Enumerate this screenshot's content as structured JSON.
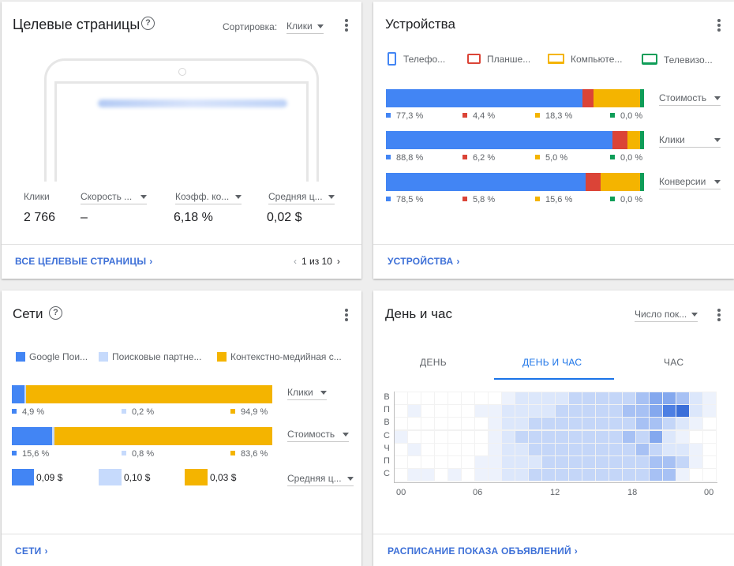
{
  "landing": {
    "title": "Целевые страницы",
    "sort_label": "Сортировка:",
    "sort_value": "Клики",
    "url_blurred": "https://example.com/landing-page",
    "stats": [
      {
        "label": "Клики",
        "value": "2 766",
        "dropdown": false
      },
      {
        "label": "Скорость ...",
        "value": "–",
        "dropdown": true
      },
      {
        "label": "Коэфф. ко...",
        "value": "6,18 %",
        "dropdown": true
      },
      {
        "label": "Средняя ц...",
        "value": "0,02 $",
        "dropdown": true
      }
    ],
    "footer_link": "ВСЕ ЦЕЛЕВЫЕ СТРАНИЦЫ",
    "pager": "1 из 10"
  },
  "devices": {
    "title": "Устройства",
    "legend": [
      {
        "label": "Телефо...",
        "icon": "phone-icon",
        "color": "#4285f4"
      },
      {
        "label": "Планше...",
        "icon": "tablet-icon",
        "color": "#db4437"
      },
      {
        "label": "Компьюте...",
        "icon": "laptop-icon",
        "color": "#f4b400"
      },
      {
        "label": "Телевизо...",
        "icon": "tv-icon",
        "color": "#0f9d58"
      }
    ],
    "rows": [
      {
        "metric": "Стоимость",
        "values": [
          77.3,
          4.4,
          18.3,
          0.0
        ],
        "labels": [
          "77,3 %",
          "4,4 %",
          "18,3 %",
          "0,0 %"
        ]
      },
      {
        "metric": "Клики",
        "values": [
          88.8,
          6.2,
          5.0,
          0.0
        ],
        "labels": [
          "88,8 %",
          "6,2 %",
          "5,0 %",
          "0,0 %"
        ]
      },
      {
        "metric": "Конверсии",
        "values": [
          78.5,
          5.8,
          15.6,
          0.0
        ],
        "labels": [
          "78,5 %",
          "5,8 %",
          "15,6 %",
          "0,0 %"
        ]
      }
    ],
    "footer_link": "УСТРОЙСТВА"
  },
  "networks": {
    "title": "Сети",
    "legend": [
      {
        "label": "Google Пои...",
        "color": "#4285f4"
      },
      {
        "label": "Поисковые партне...",
        "color": "#c6dafc"
      },
      {
        "label": "Контекстно-медийная с...",
        "color": "#f4b400"
      }
    ],
    "rows": [
      {
        "metric": "Клики",
        "values": [
          4.9,
          0.2,
          94.9
        ],
        "labels": [
          "4,9 %",
          "0,2 %",
          "94,9 %"
        ]
      },
      {
        "metric": "Стоимость",
        "values": [
          15.6,
          0.8,
          83.6
        ],
        "labels": [
          "15,6 %",
          "0,8 %",
          "83,6 %"
        ]
      }
    ],
    "cost": {
      "metric": "Средняя ц...",
      "labels": [
        "0,09 $",
        "0,10 $",
        "0,03 $"
      ]
    },
    "footer_link": "СЕТИ"
  },
  "dayhour": {
    "title": "День и час",
    "metric_dropdown": "Число пок...",
    "tabs": [
      "ДЕНЬ",
      "ДЕНЬ И ЧАС",
      "ЧАС"
    ],
    "active_tab": 1,
    "row_labels": [
      "В",
      "П",
      "В",
      "С",
      "Ч",
      "П",
      "С"
    ],
    "x_ticks": [
      "00",
      "06",
      "12",
      "18",
      "00"
    ],
    "intensity": [
      [
        0,
        0,
        0,
        0,
        0,
        0,
        0,
        0,
        1,
        2,
        2,
        2,
        2,
        3,
        3,
        3,
        3,
        3,
        4,
        5,
        5,
        4,
        2,
        1
      ],
      [
        0,
        1,
        0,
        0,
        0,
        0,
        1,
        1,
        2,
        2,
        2,
        2,
        3,
        3,
        3,
        3,
        3,
        4,
        4,
        5,
        6,
        7,
        2,
        1
      ],
      [
        0,
        0,
        0,
        0,
        0,
        0,
        0,
        1,
        2,
        2,
        3,
        3,
        3,
        3,
        3,
        3,
        3,
        3,
        4,
        4,
        3,
        2,
        1,
        0
      ],
      [
        1,
        0,
        0,
        0,
        0,
        0,
        0,
        1,
        2,
        3,
        3,
        3,
        3,
        3,
        3,
        3,
        3,
        4,
        3,
        5,
        2,
        1,
        0,
        0
      ],
      [
        0,
        1,
        0,
        0,
        0,
        0,
        0,
        1,
        2,
        2,
        3,
        3,
        3,
        3,
        3,
        3,
        3,
        3,
        4,
        3,
        2,
        2,
        1,
        0
      ],
      [
        0,
        0,
        0,
        0,
        0,
        0,
        1,
        1,
        2,
        2,
        2,
        3,
        3,
        3,
        3,
        3,
        3,
        3,
        3,
        4,
        4,
        3,
        1,
        0
      ],
      [
        0,
        1,
        1,
        0,
        1,
        0,
        1,
        1,
        2,
        2,
        3,
        3,
        3,
        3,
        3,
        3,
        3,
        3,
        3,
        4,
        4,
        1,
        0,
        0
      ]
    ],
    "footer_link": "РАСПИСАНИЕ ПОКАЗА ОБЪЯВЛЕНИЙ"
  },
  "colors": {
    "accent": "#3c6fd7",
    "blue": "#4285f4",
    "red": "#db4437",
    "yellow": "#f4b400",
    "green": "#0f9d58",
    "light_blue": "#c6dafc"
  }
}
